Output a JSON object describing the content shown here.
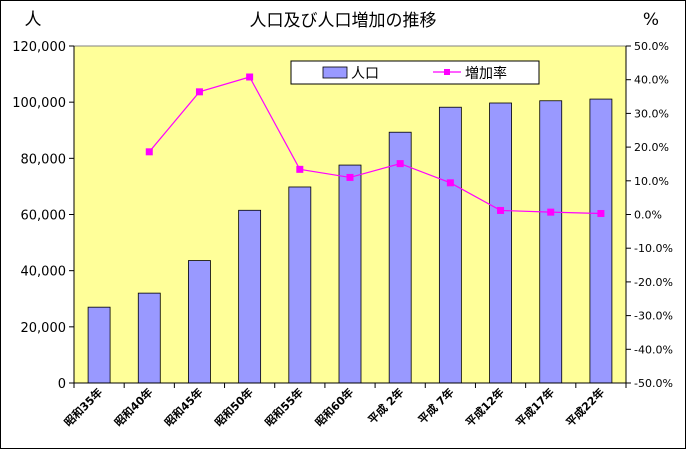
{
  "chart_data": {
    "type": "bar+line",
    "title": "人口及び人口増加の推移",
    "y_left_unit": "人",
    "y_right_unit": "%",
    "categories": [
      "昭和35年",
      "昭和40年",
      "昭和45年",
      "昭和50年",
      "昭和55年",
      "昭和60年",
      "平成 2年",
      "平成 7年",
      "平成12年",
      "平成17年",
      "平成22年"
    ],
    "y_left_ticks": [
      "0",
      "20,000",
      "40,000",
      "60,000",
      "80,000",
      "100,000",
      "120,000"
    ],
    "y_right_ticks": [
      "-50.0%",
      "-40.0%",
      "-30.0%",
      "-20.0%",
      "-10.0%",
      "0.0%",
      "10.0%",
      "20.0%",
      "30.0%",
      "40.0%",
      "50.0%"
    ],
    "ylim_left": [
      0,
      120000
    ],
    "ylim_right": [
      -50,
      50
    ],
    "grid": false,
    "legend_position": "top-right",
    "series": [
      {
        "name": "人口",
        "type": "bar",
        "axis": "left",
        "color": "#9999ff",
        "values": [
          27000,
          32000,
          43600,
          61500,
          69800,
          77600,
          89300,
          98200,
          99700,
          100500,
          101100
        ]
      },
      {
        "name": "増加率",
        "type": "line",
        "axis": "right",
        "color": "#ff00ff",
        "values": [
          null,
          18.6,
          36.4,
          40.8,
          13.4,
          11.0,
          15.1,
          9.4,
          1.2,
          0.7,
          0.3
        ]
      }
    ],
    "colors": {
      "plot_bg": "#ffff99",
      "bar": "#9999ff",
      "line": "#ff00ff"
    }
  }
}
